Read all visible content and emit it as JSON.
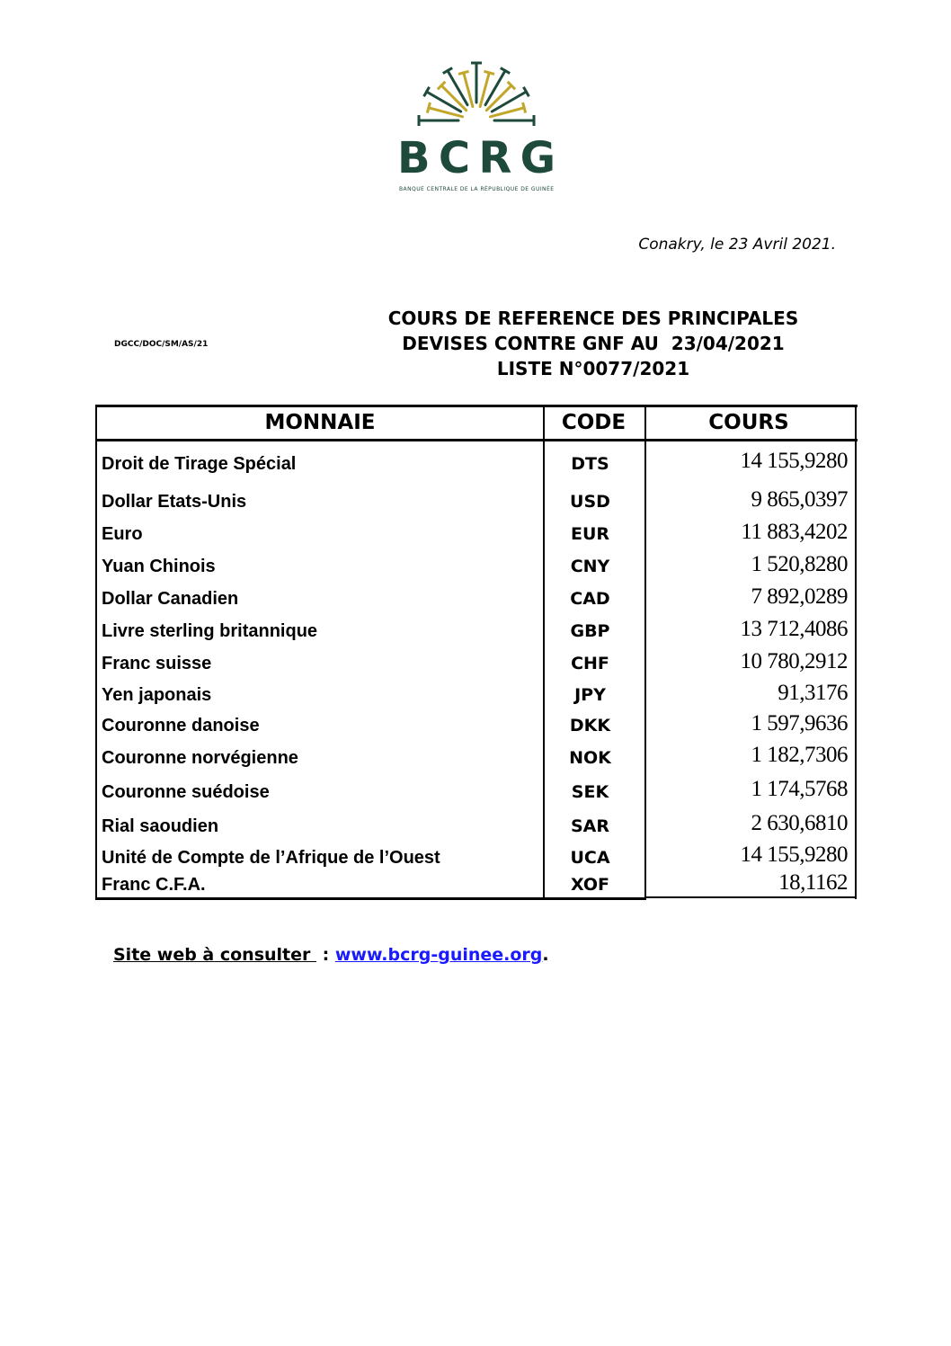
{
  "logo": {
    "acronym": "BCRG",
    "subtitle": "BANQUE CENTRALE DE LA RÉPUBLIQUE DE GUINÉE",
    "colors": {
      "green": "#1e4a3c",
      "gold": "#c2a72a"
    }
  },
  "dateline": "Conakry, le 23 Avril 2021.",
  "reference": "DGCC/DOC/SM/AS/21",
  "title": {
    "line1": "COURS DE REFERENCE DES PRINCIPALES",
    "line2": "DEVISES CONTRE GNF AU  23/04/2021",
    "line3": "LISTE N°0077/2021"
  },
  "table": {
    "headers": [
      "MONNAIE",
      "CODE",
      "COURS"
    ],
    "rows": [
      {
        "name": "Droit de Tirage Spécial",
        "code": "DTS",
        "rate": "14 155,9280"
      },
      {
        "name": "Dollar Etats-Unis",
        "code": "USD",
        "rate": "9 865,0397"
      },
      {
        "name": "Euro",
        "code": "EUR",
        "rate": "11 883,4202"
      },
      {
        "name": "Yuan Chinois",
        "code": "CNY",
        "rate": "1 520,8280"
      },
      {
        "name": "Dollar Canadien",
        "code": "CAD",
        "rate": "7 892,0289"
      },
      {
        "name": "Livre sterling britannique",
        "code": "GBP",
        "rate": "13 712,4086"
      },
      {
        "name": "Franc suisse",
        "code": "CHF",
        "rate": "10 780,2912"
      },
      {
        "name": "Yen japonais",
        "code": "JPY",
        "rate": "91,3176"
      },
      {
        "name": "Couronne danoise",
        "code": "DKK",
        "rate": "1 597,9636"
      },
      {
        "name": "Couronne norvégienne",
        "code": "NOK",
        "rate": "1 182,7306"
      },
      {
        "name": "Couronne suédoise",
        "code": "SEK",
        "rate": "1 174,5768"
      },
      {
        "name": "Rial saoudien",
        "code": "SAR",
        "rate": "2 630,6810"
      },
      {
        "name": "Unité de Compte de l’Afrique de l’Ouest",
        "code": "UCA",
        "rate": "14 155,9280"
      },
      {
        "name": "Franc C.F.A.",
        "code": "XOF",
        "rate": "18,1162"
      }
    ]
  },
  "footer": {
    "label": "Site web à consulter ",
    "sep": " : ",
    "link": "www.bcrg-guinee.org",
    "end": "."
  }
}
